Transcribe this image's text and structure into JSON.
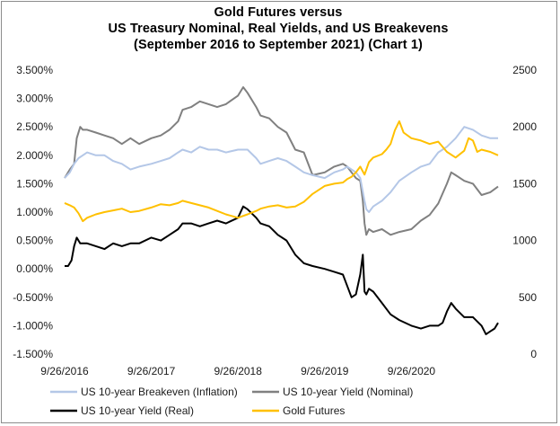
{
  "chart_data": {
    "type": "line",
    "title_lines": [
      "Gold Futures versus",
      "US Treasury Nominal, Real Yields, and US Breakevens",
      "(September 2016 to September 2021) (Chart 1)"
    ],
    "x_tick_labels": [
      "9/26/2016",
      "9/26/2017",
      "9/26/2018",
      "9/26/2019",
      "9/26/2020"
    ],
    "x_range": [
      2016.74,
      2021.74
    ],
    "y_left": {
      "range": [
        -1.5,
        3.5
      ],
      "tick_labels": [
        "3.500%",
        "3.000%",
        "2.500%",
        "2.000%",
        "1.500%",
        "1.000%",
        "0.500%",
        "0.000%",
        "-0.500%",
        "-1.000%",
        "-1.500%"
      ]
    },
    "y_right": {
      "range": [
        0,
        2500
      ],
      "tick_labels": [
        "2500",
        "2000",
        "1500",
        "1000",
        "500",
        "0"
      ]
    },
    "series": [
      {
        "name": "US 10-year Breakeven (Inflation)",
        "axis": "left",
        "color": "#b4c7e7",
        "width": 2,
        "x": [
          2016.74,
          2016.8,
          2016.85,
          2016.9,
          2016.95,
          2017.0,
          2017.1,
          2017.2,
          2017.3,
          2017.4,
          2017.5,
          2017.6,
          2017.74,
          2017.85,
          2017.95,
          2018.05,
          2018.1,
          2018.2,
          2018.3,
          2018.4,
          2018.5,
          2018.6,
          2018.74,
          2018.85,
          2018.95,
          2019.0,
          2019.1,
          2019.2,
          2019.3,
          2019.4,
          2019.5,
          2019.6,
          2019.74,
          2019.85,
          2019.95,
          2020.0,
          2020.05,
          2020.1,
          2020.15,
          2020.2,
          2020.22,
          2020.25,
          2020.3,
          2020.4,
          2020.5,
          2020.6,
          2020.74,
          2020.85,
          2020.95,
          2021.05,
          2021.15,
          2021.25,
          2021.35,
          2021.45,
          2021.55,
          2021.65,
          2021.74
        ],
        "y": [
          1.6,
          1.7,
          1.85,
          1.95,
          2.0,
          2.05,
          2.0,
          2.0,
          1.9,
          1.85,
          1.75,
          1.8,
          1.85,
          1.9,
          1.95,
          2.05,
          2.1,
          2.05,
          2.15,
          2.1,
          2.1,
          2.05,
          2.1,
          2.1,
          1.95,
          1.85,
          1.9,
          1.95,
          1.9,
          1.8,
          1.7,
          1.65,
          1.6,
          1.7,
          1.75,
          1.8,
          1.75,
          1.7,
          1.6,
          1.2,
          1.05,
          1.0,
          1.1,
          1.2,
          1.35,
          1.55,
          1.7,
          1.8,
          1.85,
          2.05,
          2.15,
          2.3,
          2.5,
          2.45,
          2.35,
          2.3,
          2.3
        ]
      },
      {
        "name": "US 10-year Yield (Nominal)",
        "axis": "left",
        "color": "#808080",
        "width": 2,
        "x": [
          2016.74,
          2016.8,
          2016.85,
          2016.88,
          2016.92,
          2016.95,
          2017.0,
          2017.1,
          2017.2,
          2017.3,
          2017.4,
          2017.5,
          2017.6,
          2017.74,
          2017.85,
          2017.95,
          2018.05,
          2018.1,
          2018.2,
          2018.3,
          2018.4,
          2018.5,
          2018.6,
          2018.74,
          2018.8,
          2018.85,
          2018.95,
          2019.0,
          2019.1,
          2019.2,
          2019.3,
          2019.4,
          2019.5,
          2019.6,
          2019.74,
          2019.85,
          2019.95,
          2020.0,
          2020.05,
          2020.1,
          2020.15,
          2020.18,
          2020.2,
          2020.22,
          2020.25,
          2020.3,
          2020.4,
          2020.5,
          2020.6,
          2020.74,
          2020.85,
          2020.95,
          2021.05,
          2021.15,
          2021.2,
          2021.25,
          2021.35,
          2021.45,
          2021.55,
          2021.65,
          2021.74
        ],
        "y": [
          1.6,
          1.75,
          1.85,
          2.3,
          2.5,
          2.45,
          2.45,
          2.4,
          2.35,
          2.3,
          2.2,
          2.3,
          2.2,
          2.3,
          2.35,
          2.45,
          2.6,
          2.8,
          2.85,
          2.95,
          2.9,
          2.85,
          2.9,
          3.05,
          3.2,
          3.1,
          2.85,
          2.7,
          2.65,
          2.5,
          2.4,
          2.1,
          2.05,
          1.65,
          1.7,
          1.8,
          1.85,
          1.8,
          1.7,
          1.6,
          1.55,
          1.2,
          0.8,
          0.6,
          0.7,
          0.65,
          0.7,
          0.6,
          0.65,
          0.7,
          0.85,
          0.95,
          1.15,
          1.5,
          1.7,
          1.65,
          1.55,
          1.5,
          1.3,
          1.35,
          1.45
        ]
      },
      {
        "name": "US 10-year Yield (Real)",
        "axis": "left",
        "color": "#000000",
        "width": 2,
        "x": [
          2016.74,
          2016.78,
          2016.82,
          2016.85,
          2016.88,
          2016.92,
          2016.95,
          2017.0,
          2017.1,
          2017.2,
          2017.3,
          2017.4,
          2017.5,
          2017.6,
          2017.74,
          2017.85,
          2017.95,
          2018.05,
          2018.1,
          2018.2,
          2018.3,
          2018.4,
          2018.5,
          2018.6,
          2018.74,
          2018.8,
          2018.85,
          2018.95,
          2019.0,
          2019.1,
          2019.2,
          2019.3,
          2019.4,
          2019.5,
          2019.6,
          2019.74,
          2019.85,
          2019.95,
          2020.0,
          2020.05,
          2020.1,
          2020.15,
          2020.18,
          2020.2,
          2020.22,
          2020.25,
          2020.3,
          2020.4,
          2020.5,
          2020.6,
          2020.74,
          2020.85,
          2020.95,
          2021.05,
          2021.1,
          2021.15,
          2021.2,
          2021.25,
          2021.35,
          2021.45,
          2021.55,
          2021.6,
          2021.65,
          2021.7,
          2021.74
        ],
        "y": [
          0.05,
          0.05,
          0.15,
          0.4,
          0.55,
          0.45,
          0.45,
          0.45,
          0.4,
          0.35,
          0.45,
          0.4,
          0.45,
          0.45,
          0.55,
          0.5,
          0.6,
          0.7,
          0.8,
          0.8,
          0.75,
          0.8,
          0.85,
          0.8,
          0.9,
          1.1,
          1.05,
          0.9,
          0.8,
          0.75,
          0.6,
          0.5,
          0.25,
          0.1,
          0.05,
          0.0,
          -0.05,
          -0.1,
          -0.3,
          -0.5,
          -0.45,
          -0.1,
          0.25,
          -0.4,
          -0.45,
          -0.35,
          -0.4,
          -0.6,
          -0.8,
          -0.9,
          -1.0,
          -1.05,
          -1.0,
          -1.0,
          -0.95,
          -0.75,
          -0.6,
          -0.7,
          -0.85,
          -0.85,
          -1.0,
          -1.15,
          -1.1,
          -1.05,
          -0.95
        ]
      },
      {
        "name": "Gold Futures",
        "axis": "right",
        "color": "#ffc000",
        "width": 2,
        "x": [
          2016.74,
          2016.8,
          2016.85,
          2016.9,
          2016.95,
          2017.0,
          2017.1,
          2017.2,
          2017.3,
          2017.4,
          2017.5,
          2017.6,
          2017.74,
          2017.85,
          2017.95,
          2018.05,
          2018.1,
          2018.2,
          2018.3,
          2018.4,
          2018.5,
          2018.6,
          2018.74,
          2018.85,
          2018.95,
          2019.0,
          2019.1,
          2019.2,
          2019.3,
          2019.4,
          2019.5,
          2019.6,
          2019.74,
          2019.85,
          2019.95,
          2020.0,
          2020.05,
          2020.1,
          2020.15,
          2020.2,
          2020.25,
          2020.3,
          2020.4,
          2020.45,
          2020.5,
          2020.55,
          2020.6,
          2020.65,
          2020.74,
          2020.85,
          2020.95,
          2021.05,
          2021.15,
          2021.25,
          2021.35,
          2021.4,
          2021.45,
          2021.5,
          2021.55,
          2021.65,
          2021.74
        ],
        "y": [
          1330,
          1310,
          1290,
          1240,
          1170,
          1200,
          1230,
          1250,
          1265,
          1280,
          1250,
          1260,
          1290,
          1320,
          1310,
          1330,
          1350,
          1330,
          1310,
          1290,
          1260,
          1230,
          1200,
          1230,
          1260,
          1280,
          1300,
          1310,
          1290,
          1300,
          1340,
          1410,
          1480,
          1500,
          1510,
          1540,
          1560,
          1600,
          1650,
          1580,
          1690,
          1730,
          1760,
          1800,
          1850,
          1970,
          2050,
          1950,
          1900,
          1880,
          1850,
          1870,
          1780,
          1730,
          1790,
          1900,
          1880,
          1780,
          1800,
          1780,
          1750
        ]
      }
    ],
    "legend": {
      "position": "bottom",
      "entries": [
        {
          "label": "US 10-year Breakeven (Inflation)",
          "color": "#b4c7e7"
        },
        {
          "label": "US 10-year Yield (Nominal)",
          "color": "#808080"
        },
        {
          "label": "US 10-year Yield (Real)",
          "color": "#000000"
        },
        {
          "label": "Gold Futures",
          "color": "#ffc000"
        }
      ]
    }
  }
}
